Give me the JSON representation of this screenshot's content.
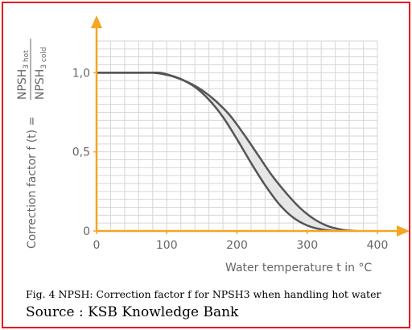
{
  "caption": "Fig. 4 NPSH: Correction  factor f for NPSH3 when handling hot water",
  "source": "Source : KSB Knowledge Bank",
  "chart_data": {
    "type": "area",
    "xlabel": "Water temperature  t in °C",
    "ylabel": {
      "prefix": "Correction factor  f (t) = ",
      "numerator": "NPSH",
      "numerator_sub": "3 hot",
      "denominator": "NPSH",
      "denominator_sub": "3 cold"
    },
    "x_ticks": [
      "0",
      "100",
      "200",
      "300",
      "400"
    ],
    "y_ticks": [
      "0",
      "0,5",
      "1,0"
    ],
    "xlim": [
      0,
      400
    ],
    "ylim": [
      0,
      1.2
    ],
    "grid": true,
    "colors": {
      "axis": "#f5a623",
      "curve": "#555555",
      "band": "#e6e6e6",
      "grid": "#d6d6d6",
      "frame": "#e8141b"
    },
    "series": [
      {
        "x": [
          0,
          60,
          78,
          90,
          110,
          130,
          150,
          170,
          190,
          210,
          230,
          250,
          270,
          290,
          310,
          330,
          350,
          370
        ],
        "y": [
          1.0,
          1.0,
          1.0,
          0.995,
          0.975,
          0.94,
          0.89,
          0.82,
          0.73,
          0.61,
          0.48,
          0.35,
          0.24,
          0.145,
          0.075,
          0.03,
          0.008,
          0.0
        ]
      },
      {
        "x": [
          0,
          60,
          78,
          90,
          100,
          120,
          140,
          160,
          180,
          200,
          220,
          240,
          260,
          280,
          300,
          320,
          340
        ],
        "y": [
          1.0,
          1.0,
          1.0,
          1.0,
          0.99,
          0.96,
          0.91,
          0.83,
          0.72,
          0.58,
          0.43,
          0.29,
          0.17,
          0.085,
          0.035,
          0.01,
          0.0
        ]
      }
    ]
  }
}
